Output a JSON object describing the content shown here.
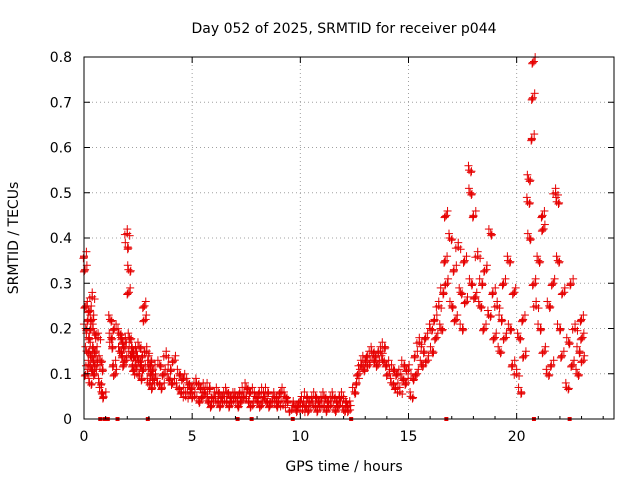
{
  "chart_data": {
    "type": "scatter",
    "title": "Day 052 of 2025, SRMTID for receiver p044",
    "xlabel": "GPS time / hours",
    "ylabel": "SRMTID / TECUs",
    "xlim": [
      0,
      24.5
    ],
    "ylim": [
      0,
      0.8
    ],
    "xticks": [
      0,
      5,
      10,
      15,
      20
    ],
    "xtick_labels": [
      "0",
      "5",
      "10",
      "15",
      "20"
    ],
    "yticks": [
      0,
      0.1,
      0.2,
      0.3,
      0.4,
      0.5,
      0.6,
      0.7,
      0.8
    ],
    "ytick_labels": [
      "0",
      "0.1",
      "0.2",
      "0.3",
      "0.4",
      "0.5",
      "0.6",
      "0.7",
      "0.8"
    ],
    "grid": true,
    "marker": "plus",
    "color": "#e60000",
    "series": [
      {
        "name": "p044",
        "points": [
          [
            0.0,
            0.36
          ],
          [
            0.05,
            0.33
          ],
          [
            0.08,
            0.2
          ],
          [
            0.1,
            0.25
          ],
          [
            0.12,
            0.15
          ],
          [
            0.15,
            0.1
          ],
          [
            0.18,
            0.22
          ],
          [
            0.2,
            0.12
          ],
          [
            0.22,
            0.18
          ],
          [
            0.25,
            0.08
          ],
          [
            0.28,
            0.24
          ],
          [
            0.3,
            0.14
          ],
          [
            0.32,
            0.2
          ],
          [
            0.35,
            0.11
          ],
          [
            0.38,
            0.27
          ],
          [
            0.4,
            0.16
          ],
          [
            0.42,
            0.22
          ],
          [
            0.45,
            0.13
          ],
          [
            0.48,
            0.19
          ],
          [
            0.5,
            0.1
          ],
          [
            0.55,
            0.15
          ],
          [
            0.6,
            0.12
          ],
          [
            0.65,
            0.18
          ],
          [
            0.7,
            0.08
          ],
          [
            0.75,
            0.13
          ],
          [
            0.8,
            0.06
          ],
          [
            0.85,
            0.11
          ],
          [
            0.9,
            0.05
          ],
          [
            1.2,
            0.22
          ],
          [
            1.25,
            0.18
          ],
          [
            1.3,
            0.16
          ],
          [
            1.35,
            0.12
          ],
          [
            1.4,
            0.2
          ],
          [
            1.45,
            0.1
          ],
          [
            1.6,
            0.19
          ],
          [
            1.65,
            0.15
          ],
          [
            1.7,
            0.18
          ],
          [
            1.75,
            0.14
          ],
          [
            1.8,
            0.17
          ],
          [
            1.85,
            0.12
          ],
          [
            1.9,
            0.16
          ],
          [
            1.95,
            0.13
          ],
          [
            2.0,
            0.41
          ],
          [
            2.02,
            0.38
          ],
          [
            2.05,
            0.33
          ],
          [
            2.08,
            0.28
          ],
          [
            2.1,
            0.18
          ],
          [
            2.15,
            0.14
          ],
          [
            2.2,
            0.16
          ],
          [
            2.25,
            0.12
          ],
          [
            2.3,
            0.15
          ],
          [
            2.35,
            0.11
          ],
          [
            2.4,
            0.14
          ],
          [
            2.45,
            0.1
          ],
          [
            2.5,
            0.13
          ],
          [
            2.55,
            0.16
          ],
          [
            2.6,
            0.12
          ],
          [
            2.65,
            0.09
          ],
          [
            2.7,
            0.14
          ],
          [
            2.75,
            0.11
          ],
          [
            2.8,
            0.25
          ],
          [
            2.85,
            0.22
          ],
          [
            2.9,
            0.15
          ],
          [
            2.95,
            0.08
          ],
          [
            3.0,
            0.12
          ],
          [
            3.05,
            0.1
          ],
          [
            3.1,
            0.13
          ],
          [
            3.15,
            0.07
          ],
          [
            3.2,
            0.11
          ],
          [
            3.25,
            0.09
          ],
          [
            3.4,
            0.08
          ],
          [
            3.5,
            0.12
          ],
          [
            3.6,
            0.07
          ],
          [
            3.7,
            0.1
          ],
          [
            3.8,
            0.14
          ],
          [
            3.9,
            0.09
          ],
          [
            4.0,
            0.11
          ],
          [
            4.1,
            0.08
          ],
          [
            4.2,
            0.13
          ],
          [
            4.3,
            0.07
          ],
          [
            4.4,
            0.1
          ],
          [
            4.5,
            0.06
          ],
          [
            4.6,
            0.09
          ],
          [
            4.7,
            0.05
          ],
          [
            4.8,
            0.08
          ],
          [
            4.9,
            0.06
          ],
          [
            5.0,
            0.07
          ],
          [
            5.1,
            0.05
          ],
          [
            5.2,
            0.08
          ],
          [
            5.3,
            0.04
          ],
          [
            5.4,
            0.07
          ],
          [
            5.5,
            0.05
          ],
          [
            5.6,
            0.06
          ],
          [
            5.7,
            0.04
          ],
          [
            5.8,
            0.07
          ],
          [
            5.9,
            0.03
          ],
          [
            6.0,
            0.05
          ],
          [
            6.1,
            0.04
          ],
          [
            6.2,
            0.06
          ],
          [
            6.3,
            0.03
          ],
          [
            6.4,
            0.05
          ],
          [
            6.5,
            0.04
          ],
          [
            6.6,
            0.06
          ],
          [
            6.7,
            0.03
          ],
          [
            6.8,
            0.05
          ],
          [
            6.9,
            0.04
          ],
          [
            7.0,
            0.05
          ],
          [
            7.1,
            0.03
          ],
          [
            7.2,
            0.06
          ],
          [
            7.3,
            0.04
          ],
          [
            7.4,
            0.05
          ],
          [
            7.5,
            0.07
          ],
          [
            7.6,
            0.04
          ],
          [
            7.7,
            0.06
          ],
          [
            7.8,
            0.03
          ],
          [
            7.9,
            0.05
          ],
          [
            8.0,
            0.04
          ],
          [
            8.1,
            0.06
          ],
          [
            8.2,
            0.03
          ],
          [
            8.3,
            0.05
          ],
          [
            8.4,
            0.04
          ],
          [
            8.5,
            0.06
          ],
          [
            8.6,
            0.03
          ],
          [
            8.7,
            0.04
          ],
          [
            8.8,
            0.05
          ],
          [
            8.9,
            0.03
          ],
          [
            9.0,
            0.04
          ],
          [
            9.1,
            0.06
          ],
          [
            9.2,
            0.03
          ],
          [
            9.3,
            0.05
          ],
          [
            9.4,
            0.04
          ],
          [
            9.6,
            0.02
          ],
          [
            9.7,
            0.03
          ],
          [
            9.8,
            0.02
          ],
          [
            9.9,
            0.03
          ],
          [
            10.0,
            0.04
          ],
          [
            10.1,
            0.02
          ],
          [
            10.2,
            0.03
          ],
          [
            10.3,
            0.05
          ],
          [
            10.4,
            0.02
          ],
          [
            10.5,
            0.04
          ],
          [
            10.6,
            0.03
          ],
          [
            10.7,
            0.05
          ],
          [
            10.8,
            0.02
          ],
          [
            10.9,
            0.04
          ],
          [
            11.0,
            0.03
          ],
          [
            11.1,
            0.05
          ],
          [
            11.2,
            0.02
          ],
          [
            11.3,
            0.04
          ],
          [
            11.4,
            0.03
          ],
          [
            11.5,
            0.05
          ],
          [
            11.6,
            0.02
          ],
          [
            11.7,
            0.04
          ],
          [
            11.8,
            0.03
          ],
          [
            11.9,
            0.05
          ],
          [
            12.0,
            0.02
          ],
          [
            12.1,
            0.04
          ],
          [
            12.2,
            0.03
          ],
          [
            12.3,
            0.02
          ],
          [
            12.5,
            0.06
          ],
          [
            12.6,
            0.08
          ],
          [
            12.7,
            0.1
          ],
          [
            12.8,
            0.12
          ],
          [
            12.9,
            0.11
          ],
          [
            13.0,
            0.13
          ],
          [
            13.1,
            0.14
          ],
          [
            13.2,
            0.12
          ],
          [
            13.3,
            0.15
          ],
          [
            13.4,
            0.13
          ],
          [
            13.5,
            0.14
          ],
          [
            13.6,
            0.12
          ],
          [
            13.7,
            0.15
          ],
          [
            13.8,
            0.13
          ],
          [
            13.9,
            0.16
          ],
          [
            14.0,
            0.12
          ],
          [
            14.1,
            0.1
          ],
          [
            14.2,
            0.08
          ],
          [
            14.3,
            0.11
          ],
          [
            14.4,
            0.07
          ],
          [
            14.5,
            0.1
          ],
          [
            14.6,
            0.06
          ],
          [
            14.7,
            0.09
          ],
          [
            14.8,
            0.12
          ],
          [
            14.9,
            0.08
          ],
          [
            15.0,
            0.11
          ],
          [
            15.1,
            0.05
          ],
          [
            15.2,
            0.09
          ],
          [
            15.3,
            0.14
          ],
          [
            15.4,
            0.1
          ],
          [
            15.5,
            0.17
          ],
          [
            15.6,
            0.12
          ],
          [
            15.7,
            0.15
          ],
          [
            15.8,
            0.18
          ],
          [
            15.9,
            0.13
          ],
          [
            16.0,
            0.2
          ],
          [
            16.1,
            0.15
          ],
          [
            16.2,
            0.22
          ],
          [
            16.3,
            0.18
          ],
          [
            16.4,
            0.25
          ],
          [
            16.5,
            0.2
          ],
          [
            16.6,
            0.28
          ],
          [
            16.7,
            0.35
          ],
          [
            16.75,
            0.45
          ],
          [
            16.8,
            0.3
          ],
          [
            16.9,
            0.4
          ],
          [
            17.0,
            0.25
          ],
          [
            17.1,
            0.33
          ],
          [
            17.2,
            0.22
          ],
          [
            17.3,
            0.38
          ],
          [
            17.4,
            0.28
          ],
          [
            17.5,
            0.2
          ],
          [
            17.6,
            0.35
          ],
          [
            17.7,
            0.26
          ],
          [
            17.8,
            0.55
          ],
          [
            17.85,
            0.5
          ],
          [
            17.9,
            0.3
          ],
          [
            18.0,
            0.45
          ],
          [
            18.1,
            0.27
          ],
          [
            18.2,
            0.36
          ],
          [
            18.3,
            0.25
          ],
          [
            18.4,
            0.3
          ],
          [
            18.5,
            0.2
          ],
          [
            18.6,
            0.33
          ],
          [
            18.7,
            0.23
          ],
          [
            18.8,
            0.41
          ],
          [
            18.9,
            0.28
          ],
          [
            19.0,
            0.18
          ],
          [
            19.1,
            0.25
          ],
          [
            19.2,
            0.15
          ],
          [
            19.3,
            0.22
          ],
          [
            19.4,
            0.3
          ],
          [
            19.5,
            0.18
          ],
          [
            19.6,
            0.35
          ],
          [
            19.7,
            0.2
          ],
          [
            19.8,
            0.12
          ],
          [
            19.9,
            0.28
          ],
          [
            20.0,
            0.1
          ],
          [
            20.1,
            0.18
          ],
          [
            20.2,
            0.06
          ],
          [
            20.3,
            0.22
          ],
          [
            20.4,
            0.14
          ],
          [
            20.5,
            0.48
          ],
          [
            20.55,
            0.53
          ],
          [
            20.6,
            0.4
          ],
          [
            20.7,
            0.62
          ],
          [
            20.75,
            0.71
          ],
          [
            20.8,
            0.79
          ],
          [
            20.85,
            0.3
          ],
          [
            20.9,
            0.25
          ],
          [
            21.0,
            0.35
          ],
          [
            21.1,
            0.2
          ],
          [
            21.2,
            0.45
          ],
          [
            21.25,
            0.42
          ],
          [
            21.3,
            0.15
          ],
          [
            21.4,
            0.1
          ],
          [
            21.5,
            0.25
          ],
          [
            21.6,
            0.12
          ],
          [
            21.7,
            0.3
          ],
          [
            21.8,
            0.5
          ],
          [
            21.85,
            0.48
          ],
          [
            21.9,
            0.35
          ],
          [
            22.0,
            0.2
          ],
          [
            22.1,
            0.14
          ],
          [
            22.2,
            0.28
          ],
          [
            22.3,
            0.07
          ],
          [
            22.4,
            0.17
          ],
          [
            22.5,
            0.3
          ],
          [
            22.6,
            0.12
          ],
          [
            22.7,
            0.2
          ],
          [
            22.8,
            0.1
          ],
          [
            22.9,
            0.15
          ],
          [
            23.0,
            0.22
          ],
          [
            23.05,
            0.18
          ],
          [
            23.1,
            0.13
          ]
        ]
      }
    ],
    "zero_markers": [
      0.75,
      0.95,
      1.0,
      1.1,
      1.55,
      2.95,
      7.1,
      7.75,
      9.65,
      12.35,
      16.75,
      20.8,
      22.45
    ]
  }
}
